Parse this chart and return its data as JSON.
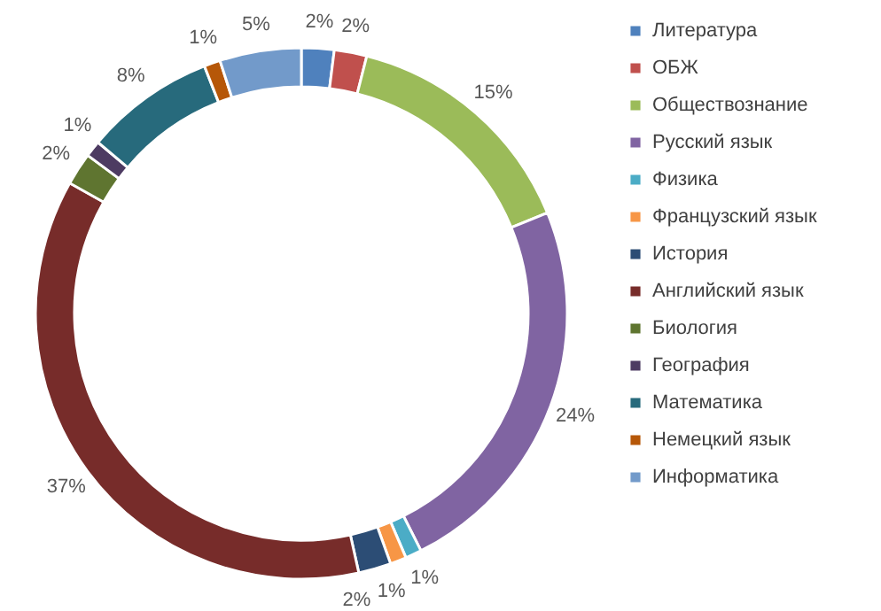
{
  "chart_data": {
    "type": "donut",
    "categories": [
      "Литература",
      "ОБЖ",
      "Обществознание",
      "Русский язык",
      "Физика",
      "Французский язык",
      "История",
      "Английский язык",
      "Биология",
      "География",
      "Математика",
      "Немецкий язык",
      "Информатика"
    ],
    "values": [
      2,
      2,
      15,
      24,
      1,
      1,
      2,
      37,
      2,
      1,
      8,
      1,
      5
    ],
    "colors": [
      "#4f81bd",
      "#c0504d",
      "#9bbb59",
      "#8064a2",
      "#4bacc6",
      "#f79646",
      "#2c4d75",
      "#772c2a",
      "#5f7530",
      "#4d3b62",
      "#276a7c",
      "#b65708",
      "#729aca"
    ],
    "value_labels": [
      "2%",
      "2%",
      "15%",
      "24%",
      "1%",
      "1%",
      "2%",
      "37%",
      "2%",
      "1%",
      "8%",
      "1%",
      "5%"
    ],
    "legend": "right"
  }
}
